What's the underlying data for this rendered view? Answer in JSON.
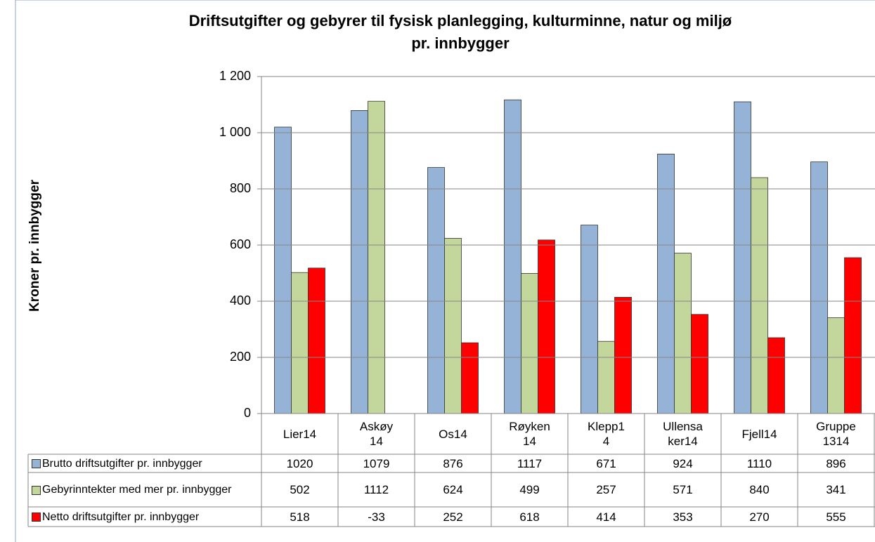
{
  "chart_data": {
    "type": "bar",
    "title": "Driftsutgifter og gebyrer til fysisk planlegging, kulturminne, natur og miljø pr. innbygger",
    "y_label": "Kroner pr. innbygger",
    "categories": [
      "Lier14",
      "Askøy 14",
      "Os14",
      "Røyken14",
      "Klepp14",
      "Ullensaker14",
      "Fjell14",
      "Gruppe 1314"
    ],
    "series": [
      {
        "name": "Brutto driftsutgifter pr. innbygger",
        "color": "#95b3d7",
        "values": [
          1020,
          1079,
          876,
          1117,
          671,
          924,
          1110,
          896
        ]
      },
      {
        "name": "Gebyrinntekter med mer pr. innbygger",
        "color": "#c3d69b",
        "values": [
          502,
          1112,
          624,
          499,
          257,
          571,
          840,
          341
        ]
      },
      {
        "name": "Netto driftsutgifter pr. innbygger",
        "color": "#ff0000",
        "values": [
          518,
          -33,
          252,
          618,
          414,
          353,
          270,
          555
        ]
      }
    ],
    "ylim": [
      0,
      1200
    ],
    "yticks": [
      0,
      200,
      400,
      600,
      800,
      {
        "value": 1000,
        "label": "1 000"
      },
      {
        "value": 1200,
        "label": "1 200"
      }
    ],
    "grid": true
  }
}
